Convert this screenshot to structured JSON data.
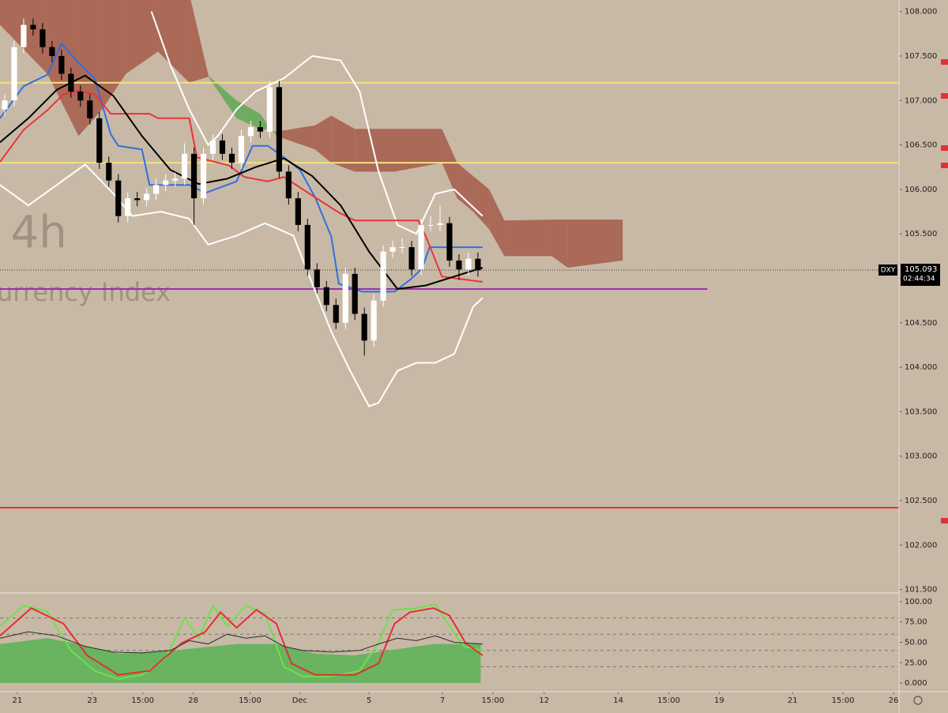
{
  "chart_data": {
    "type": "candlestick",
    "symbol": "DXY",
    "watermark": [
      ", 4h",
      "urrency Index"
    ],
    "xlim": [
      0,
      95
    ],
    "xticks": [
      {
        "value": 1.83,
        "label": "21"
      },
      {
        "value": 9.75,
        "label": "23"
      },
      {
        "value": 15.08,
        "label": "15:00"
      },
      {
        "value": 20.42,
        "label": "28"
      },
      {
        "value": 26.42,
        "label": "15:00"
      },
      {
        "value": 31.67,
        "label": "Dec"
      },
      {
        "value": 39,
        "label": "5"
      },
      {
        "value": 46.75,
        "label": "7"
      },
      {
        "value": 52.08,
        "label": "15:00"
      },
      {
        "value": 57.5,
        "label": "12"
      },
      {
        "value": 65.33,
        "label": "14"
      },
      {
        "value": 70.67,
        "label": "15:00"
      },
      {
        "value": 76,
        "label": "19"
      },
      {
        "value": 83.75,
        "label": "21"
      },
      {
        "value": 89.08,
        "label": "15:00"
      },
      {
        "value": 94.42,
        "label": "26"
      }
    ],
    "ylim": [
      101.47,
      108.13
    ],
    "yticks": [
      {
        "value": 108,
        "label": "108.000"
      },
      {
        "value": 107.5,
        "label": "107.500"
      },
      {
        "value": 107,
        "label": "107.000"
      },
      {
        "value": 106.5,
        "label": "106.500"
      },
      {
        "value": 106,
        "label": "106.000"
      },
      {
        "value": 105.5,
        "label": "105.500"
      },
      {
        "value": 105,
        "label": "105.000"
      },
      {
        "value": 104.5,
        "label": "104.500"
      },
      {
        "value": 104,
        "label": "104.000"
      },
      {
        "value": 103.5,
        "label": "103.500"
      },
      {
        "value": 103,
        "label": "103.000"
      },
      {
        "value": 102.5,
        "label": "102.500"
      },
      {
        "value": 102,
        "label": "102.000"
      },
      {
        "value": 101.5,
        "label": "101.500"
      }
    ],
    "up_color": "#ffffff",
    "down_color": "#000000",
    "open": [
      106.9,
      107.0,
      107.6,
      107.85,
      107.8,
      107.6,
      107.5,
      107.3,
      107.1,
      107.0,
      106.8,
      106.3,
      106.1,
      105.7,
      105.9,
      105.88,
      105.95,
      106.05,
      106.1,
      106.12,
      106.4,
      105.9,
      106.4,
      106.55,
      106.4,
      106.3,
      106.6,
      106.7,
      106.65,
      107.15,
      106.2,
      105.9,
      105.6,
      105.1,
      104.9,
      104.7,
      104.5,
      105.05,
      104.6,
      104.3,
      104.75,
      105.3,
      105.35,
      105.35,
      105.1,
      105.6,
      105.6,
      105.62,
      105.2,
      105.1,
      105.22
    ],
    "high": [
      107.07,
      107.67,
      107.92,
      107.92,
      107.87,
      107.67,
      107.57,
      107.37,
      107.17,
      107.07,
      106.87,
      106.37,
      106.17,
      105.97,
      105.97,
      106.02,
      106.12,
      106.17,
      106.19,
      106.52,
      106.47,
      106.47,
      106.62,
      106.62,
      106.47,
      106.67,
      106.77,
      106.77,
      107.22,
      107.22,
      106.27,
      105.97,
      105.67,
      105.17,
      104.97,
      104.77,
      105.12,
      105.12,
      104.67,
      104.82,
      105.37,
      105.42,
      105.45,
      105.42,
      105.67,
      105.7,
      105.82,
      105.69,
      105.27,
      105.29,
      105.29
    ],
    "low": [
      106.83,
      106.93,
      107.53,
      107.73,
      107.53,
      107.43,
      107.23,
      107.03,
      106.93,
      106.73,
      106.23,
      106.03,
      105.63,
      105.63,
      105.81,
      105.81,
      105.88,
      105.98,
      106.03,
      106.05,
      105.6,
      105.83,
      106.33,
      106.33,
      106.23,
      106.23,
      106.53,
      106.58,
      106.58,
      106.13,
      105.83,
      105.53,
      105.03,
      104.83,
      104.63,
      104.43,
      104.43,
      104.53,
      104.13,
      104.23,
      104.68,
      105.23,
      105.28,
      105.03,
      105.03,
      105.53,
      105.53,
      105.13,
      104.98,
      105.03,
      105.02
    ],
    "close": [
      107.0,
      107.6,
      107.85,
      107.8,
      107.6,
      107.5,
      107.3,
      107.1,
      107.0,
      106.8,
      106.3,
      106.1,
      105.7,
      105.9,
      105.88,
      105.95,
      106.05,
      106.1,
      106.12,
      106.4,
      105.9,
      106.4,
      106.55,
      106.4,
      106.3,
      106.6,
      106.7,
      106.65,
      107.15,
      106.2,
      105.9,
      105.6,
      105.1,
      104.9,
      104.7,
      104.5,
      105.05,
      104.6,
      104.3,
      104.75,
      105.3,
      105.35,
      105.35,
      105.1,
      105.6,
      105.6,
      105.62,
      105.2,
      105.1,
      105.22,
      105.09
    ],
    "cloud": {
      "up_color": "#5aa850",
      "down_color": "#a65a4a",
      "x": [
        0,
        5,
        8.3,
        10.8,
        13.3,
        16.7,
        20,
        22.1,
        25,
        27.5,
        29.2,
        33.3,
        35,
        37.5,
        41.7,
        46.7,
        48.3,
        50,
        51.7,
        53.3,
        58.3,
        60,
        65.8
      ],
      "span_a": [
        107.85,
        107.3,
        106.6,
        106.9,
        107.3,
        107.55,
        107.2,
        107.27,
        107.0,
        106.85,
        106.6,
        106.45,
        106.3,
        106.2,
        106.2,
        106.3,
        105.9,
        105.75,
        105.55,
        105.25,
        105.25,
        105.12,
        105.2
      ],
      "span_b": [
        108.2,
        108.2,
        108.2,
        108.2,
        108.2,
        108.2,
        108.2,
        107.25,
        106.8,
        106.68,
        106.65,
        106.72,
        106.83,
        106.68,
        106.68,
        106.68,
        106.3,
        106.15,
        106.0,
        105.65,
        105.66,
        105.66,
        105.66
      ]
    },
    "hlines": [
      {
        "value": 107.2,
        "color": "#f4e27c"
      },
      {
        "value": 106.3,
        "color": "#f4e27c"
      },
      {
        "value": 104.88,
        "color": "#9b2fae",
        "x_end": 74.75
      },
      {
        "value": 102.42,
        "color": "#e0313a"
      }
    ],
    "lines": [
      {
        "color": "#ffffff",
        "x": [
          16,
          18,
          20,
          22,
          23,
          25,
          27,
          30,
          33,
          36,
          38,
          40,
          42,
          44,
          46,
          48,
          50,
          51
        ],
        "values": [
          108.0,
          107.4,
          106.9,
          106.5,
          106.6,
          106.9,
          107.1,
          107.25,
          107.5,
          107.45,
          107.1,
          106.2,
          105.6,
          105.5,
          105.95,
          106.0,
          105.8,
          105.7
        ]
      },
      {
        "color": "#ffffff",
        "x": [
          0,
          3,
          6,
          9,
          12,
          14,
          17,
          20,
          22,
          25,
          28,
          31,
          33,
          35,
          37,
          39,
          40,
          42,
          44,
          46,
          48,
          50,
          51
        ],
        "values": [
          106.05,
          105.82,
          106.05,
          106.28,
          105.95,
          105.7,
          105.75,
          105.67,
          105.38,
          105.48,
          105.62,
          105.48,
          104.94,
          104.4,
          103.96,
          103.56,
          103.6,
          103.96,
          104.05,
          104.05,
          104.15,
          104.68,
          104.78
        ]
      },
      {
        "color": "#2f6fe0",
        "x": [
          0,
          2.5,
          5,
          6.5,
          8.3,
          10,
          11.7,
          12.5,
          15,
          15.8,
          20,
          21.7,
          25,
          26.7,
          28.3,
          30,
          31.7,
          33.3,
          35,
          35.8,
          38.3,
          41.7,
          43.3,
          44.6,
          45.4,
          51
        ],
        "values": [
          106.8,
          107.16,
          107.29,
          107.64,
          107.42,
          107.25,
          106.62,
          106.49,
          106.45,
          106.05,
          106.05,
          105.96,
          106.09,
          106.49,
          106.49,
          106.36,
          106.22,
          105.91,
          105.47,
          104.94,
          104.85,
          104.85,
          104.98,
          105.11,
          105.35,
          105.35
        ]
      },
      {
        "color": "#e8343a",
        "x": [
          0,
          2.5,
          5,
          6.7,
          8.3,
          10,
          11.7,
          15.8,
          16.7,
          20,
          20.8,
          24.2,
          25.8,
          28.3,
          30,
          33.3,
          35.8,
          37.5,
          41.7,
          44.2,
          45,
          46.7,
          51
        ],
        "values": [
          106.31,
          106.67,
          106.89,
          107.07,
          107.11,
          107.07,
          106.85,
          106.85,
          106.8,
          106.8,
          106.36,
          106.27,
          106.14,
          106.09,
          106.14,
          105.91,
          105.74,
          105.65,
          105.65,
          105.65,
          105.47,
          105.02,
          104.96
        ]
      },
      {
        "color": "#000000",
        "x": [
          0,
          3,
          6,
          9,
          12,
          15,
          18,
          21,
          24,
          27,
          30,
          33,
          36,
          39,
          42,
          45,
          48,
          51
        ],
        "values": [
          106.53,
          106.8,
          107.12,
          107.28,
          107.05,
          106.6,
          106.22,
          106.06,
          106.12,
          106.25,
          106.35,
          106.15,
          105.82,
          105.3,
          104.88,
          104.92,
          105.02,
          105.12
        ]
      }
    ],
    "last_price": 105.093,
    "countdown": "02:44:34",
    "oscillator": {
      "ylim": [
        -9.7,
        109.7
      ],
      "yticks": [
        {
          "value": 100,
          "label": "100.00"
        },
        {
          "value": 75,
          "label": "75.00"
        },
        {
          "value": 50,
          "label": "50.00"
        },
        {
          "value": 25,
          "label": "25.00"
        },
        {
          "value": 0,
          "label": "0.000"
        }
      ],
      "levels": [
        80,
        60,
        40,
        20
      ],
      "area": {
        "color": "#5fb35a",
        "x": [
          0,
          5,
          8.3,
          12.5,
          16.7,
          20.8,
          25,
          29.2,
          33.3,
          37.5,
          41.7,
          45.8,
          50.8
        ],
        "values": [
          48,
          55,
          48,
          36,
          38,
          43,
          48,
          48,
          36,
          34,
          41,
          48,
          48
        ]
      },
      "lines": [
        {
          "color": "#6fe04a",
          "x": [
            0,
            2.5,
            5,
            7.5,
            10,
            12.5,
            15,
            17.5,
            19.5,
            21,
            22.5,
            24,
            26,
            28,
            30,
            32,
            35,
            38,
            40,
            41.5,
            44,
            46,
            47.5,
            49,
            51
          ],
          "values": [
            70,
            95,
            88,
            40,
            15,
            5,
            10,
            30,
            80,
            55,
            95,
            70,
            95,
            85,
            20,
            8,
            8,
            15,
            50,
            90,
            92,
            97,
            70,
            45,
            40
          ]
        },
        {
          "color": "#e03030",
          "x": [
            0,
            3.3,
            6.7,
            9.2,
            12.5,
            15.8,
            19.2,
            21.7,
            23.3,
            25,
            27.1,
            29.2,
            30.8,
            33.3,
            37.5,
            40,
            41.7,
            43.3,
            45.8,
            47.5,
            49.2,
            51
          ],
          "values": [
            58,
            92,
            73,
            34,
            10,
            15,
            49,
            63,
            87,
            68,
            90,
            73,
            24,
            10,
            10,
            24,
            73,
            87,
            92,
            83,
            49,
            34
          ]
        },
        {
          "color": "#2a2a2a",
          "x": [
            0,
            3,
            6,
            9,
            12,
            15,
            18,
            20,
            22,
            24,
            26,
            28,
            30,
            32,
            35,
            38,
            40,
            42,
            44,
            46,
            48,
            51
          ],
          "values": [
            55,
            63,
            58,
            45,
            38,
            37,
            40,
            52,
            48,
            60,
            55,
            58,
            45,
            40,
            38,
            40,
            48,
            55,
            52,
            58,
            50,
            48
          ]
        }
      ]
    }
  }
}
